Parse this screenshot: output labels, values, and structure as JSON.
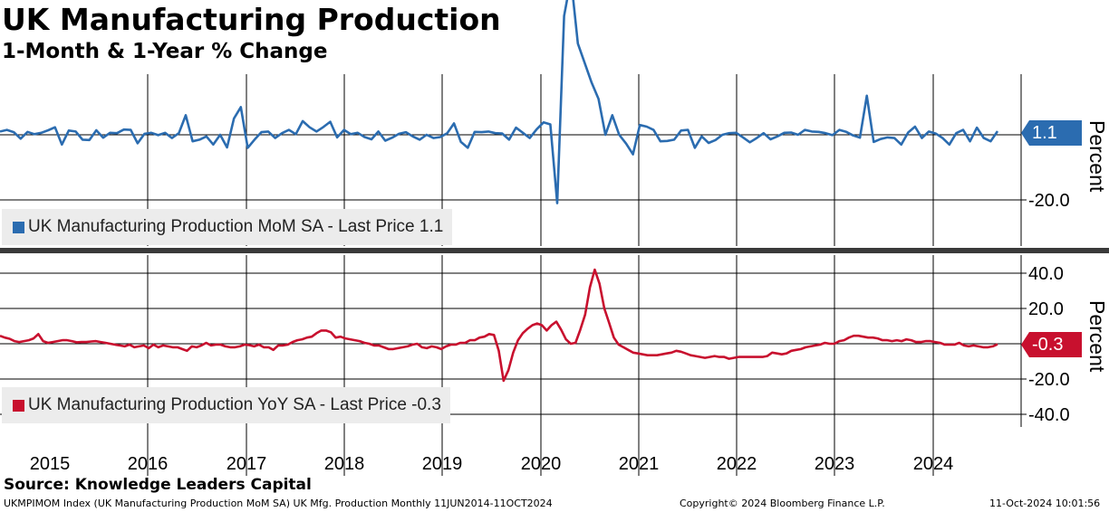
{
  "header": {
    "title": "UK Manufacturing Production",
    "subtitle": "1-Month & 1-Year % Change"
  },
  "footer": {
    "source": "Source: Knowledge Leaders Capital",
    "ticker_line": "UKMPIMOM Index (UK Manufacturing Production MoM SA) UK Mfg. Production  Monthly 11JUN2014-11OCT2024",
    "copyright": "Copyright© 2024 Bloomberg Finance L.P.",
    "timestamp": "11-Oct-2024 10:01:56"
  },
  "colors": {
    "mom": "#2b6cb0",
    "yoy": "#c8102e",
    "grid": "#000000",
    "divider": "#3a3a3a"
  },
  "chart_data": [
    {
      "type": "line",
      "title": "",
      "ylabel": "Percent",
      "ylim": [
        -27,
        33
      ],
      "yticks": [
        "-20.0"
      ],
      "ytick_values": [
        -20
      ],
      "zero_line": 0,
      "x_categories": [
        "2015",
        "2016",
        "2017",
        "2018",
        "2019",
        "2020",
        "2021",
        "2022",
        "2023",
        "2024"
      ],
      "legend": "UK Manufacturing Production MoM SA - Last Price 1.1",
      "last_price": "1.1",
      "last_value": 1.1,
      "series": [
        {
          "name": "UK Manufacturing Production MoM SA",
          "x_start": "2014-06",
          "x_end": "2024-08",
          "frequency": "monthly",
          "values": [
            1.0,
            1.5,
            0.8,
            -1.2,
            0.9,
            0.2,
            0.6,
            1.4,
            2.3,
            -3.0,
            1.3,
            1.0,
            -1.5,
            -1.6,
            1.4,
            -0.9,
            0.6,
            0.5,
            1.6,
            1.5,
            -2.6,
            0.3,
            0.6,
            -0.1,
            0.6,
            -1.0,
            0.5,
            6.0,
            -2.0,
            -1.5,
            -0.5,
            -3.0,
            0.0,
            -3.9,
            5.0,
            8.5,
            -4.0,
            -1.5,
            0.8,
            1.0,
            -1.0,
            0.5,
            1.5,
            0.2,
            4.2,
            2.3,
            1.0,
            2.4,
            4.0,
            -0.8,
            1.5,
            0.2,
            0.6,
            -0.7,
            -1.4,
            1.0,
            -1.8,
            -0.9,
            0.3,
            0.8,
            -0.5,
            -1.5,
            0.0,
            -1.0,
            -0.7,
            0.5,
            3.5,
            -2.2,
            -4.0,
            0.9,
            0.8,
            1.0,
            0.5,
            0.4,
            -1.5,
            2.2,
            0.6,
            -1.0,
            1.7,
            3.8,
            3.2,
            -21.0,
            36.5,
            48.0,
            28.0,
            22.0,
            16.0,
            11.0,
            0.0,
            6.0,
            0.0,
            -2.7,
            -6.0,
            3.0,
            2.5,
            1.5,
            -2.0,
            -1.9,
            -1.5,
            1.3,
            1.5,
            -4.0,
            -0.5,
            -2.5,
            -1.6,
            0.0,
            0.5,
            0.6,
            -0.8,
            -2.3,
            -1.0,
            0.5,
            -1.4,
            -0.5,
            0.6,
            0.7,
            0.0,
            1.5,
            1.0,
            0.9,
            0.5,
            -0.1,
            1.5,
            0.9,
            -0.2,
            -0.9,
            12.0,
            -2.2,
            -1.3,
            -0.8,
            -1.0,
            -3.0,
            0.7,
            2.5,
            -1.0,
            1.0,
            0.4,
            -1.0,
            -3.0,
            0.5,
            1.5,
            -2.0,
            2.2,
            -1.0,
            -2.0,
            1.1
          ]
        }
      ]
    },
    {
      "type": "line",
      "title": "",
      "ylabel": "Percent",
      "ylim": [
        -46,
        44
      ],
      "yticks": [
        "40.0",
        "20.0",
        "-20.0",
        "-40.0"
      ],
      "ytick_values": [
        40,
        20,
        -20,
        -40
      ],
      "zero_line": 0,
      "x_categories": [
        "2015",
        "2016",
        "2017",
        "2018",
        "2019",
        "2020",
        "2021",
        "2022",
        "2023",
        "2024"
      ],
      "legend": "UK Manufacturing Production YoY SA - Last Price -0.3",
      "last_price": "-0.3",
      "last_value": -0.3,
      "series": [
        {
          "name": "UK Manufacturing Production YoY SA",
          "x_start": "2014-06",
          "x_end": "2024-08",
          "frequency": "monthly",
          "values": [
            4.5,
            3.5,
            2.8,
            1.5,
            1.0,
            1.5,
            2.0,
            3.0,
            5.5,
            1.5,
            0.5,
            1.0,
            1.5,
            2.0,
            2.0,
            1.5,
            0.8,
            1.0,
            1.0,
            1.3,
            1.5,
            1.0,
            0.5,
            0.0,
            -0.5,
            -1.0,
            -1.5,
            -0.5,
            -2.0,
            -1.5,
            -1.0,
            -2.5,
            -0.5,
            -2.0,
            -1.0,
            -1.5,
            -2.0,
            -2.0,
            -3.0,
            -4.0,
            -1.5,
            -2.0,
            -1.0,
            0.5,
            -1.0,
            -0.5,
            -0.5,
            -1.5,
            -2.0,
            -2.0,
            -1.5,
            -0.5,
            -0.8,
            -1.5,
            -0.5,
            -2.0,
            -2.0,
            -3.5,
            -1.0,
            -1.0,
            -0.5,
            1.0,
            2.0,
            2.5,
            3.5,
            4.0,
            6.0,
            7.5,
            7.5,
            6.5,
            3.5,
            4.0,
            3.0,
            2.5,
            2.0,
            1.5,
            0.5,
            0.0,
            -1.0,
            -1.0,
            -2.0,
            -3.0,
            -3.0,
            -2.5,
            -2.0,
            -1.5,
            -0.5,
            0.0,
            -2.0,
            -2.5,
            -1.5,
            -2.0,
            -3.0,
            -1.5,
            -0.5,
            -0.5,
            0.5,
            0.5,
            2.0,
            2.0,
            3.5,
            4.0,
            5.5,
            5.0,
            -4.0,
            -21.0,
            -15.0,
            -5.0,
            2.0,
            6.0,
            8.5,
            10.5,
            11.5,
            10.5,
            7.5,
            10.5,
            12.5,
            8.0,
            2.5,
            0.0,
            0.5,
            8.0,
            16.5,
            32.0,
            42.0,
            34.0,
            20.0,
            12.0,
            3.5,
            -0.5,
            -2.0,
            -3.5,
            -5.0,
            -5.5,
            -6.0,
            -6.5,
            -6.5,
            -6.5,
            -6.0,
            -5.5,
            -5.0,
            -4.0,
            -4.5,
            -5.5,
            -6.5,
            -7.0,
            -7.5,
            -8.0,
            -7.5,
            -7.0,
            -7.5,
            -7.5,
            -8.5,
            -8.0,
            -7.5,
            -7.5,
            -7.5,
            -7.5,
            -7.5,
            -7.5,
            -7.0,
            -5.0,
            -5.5,
            -6.0,
            -5.5,
            -4.0,
            -3.5,
            -3.0,
            -2.0,
            -1.5,
            -1.0,
            -0.5,
            0.5,
            0.0,
            0.0,
            1.5,
            2.0,
            3.5,
            4.5,
            4.5,
            4.0,
            3.5,
            3.5,
            3.0,
            2.0,
            2.0,
            1.5,
            2.0,
            1.5,
            2.5,
            2.0,
            1.0,
            1.0,
            1.5,
            1.5,
            1.0,
            0.5,
            -0.5,
            -0.5,
            -0.5,
            0.5,
            -1.0,
            -1.5,
            -1.0,
            -1.5,
            -2.0,
            -2.0,
            -1.5,
            -0.3
          ]
        }
      ]
    }
  ]
}
